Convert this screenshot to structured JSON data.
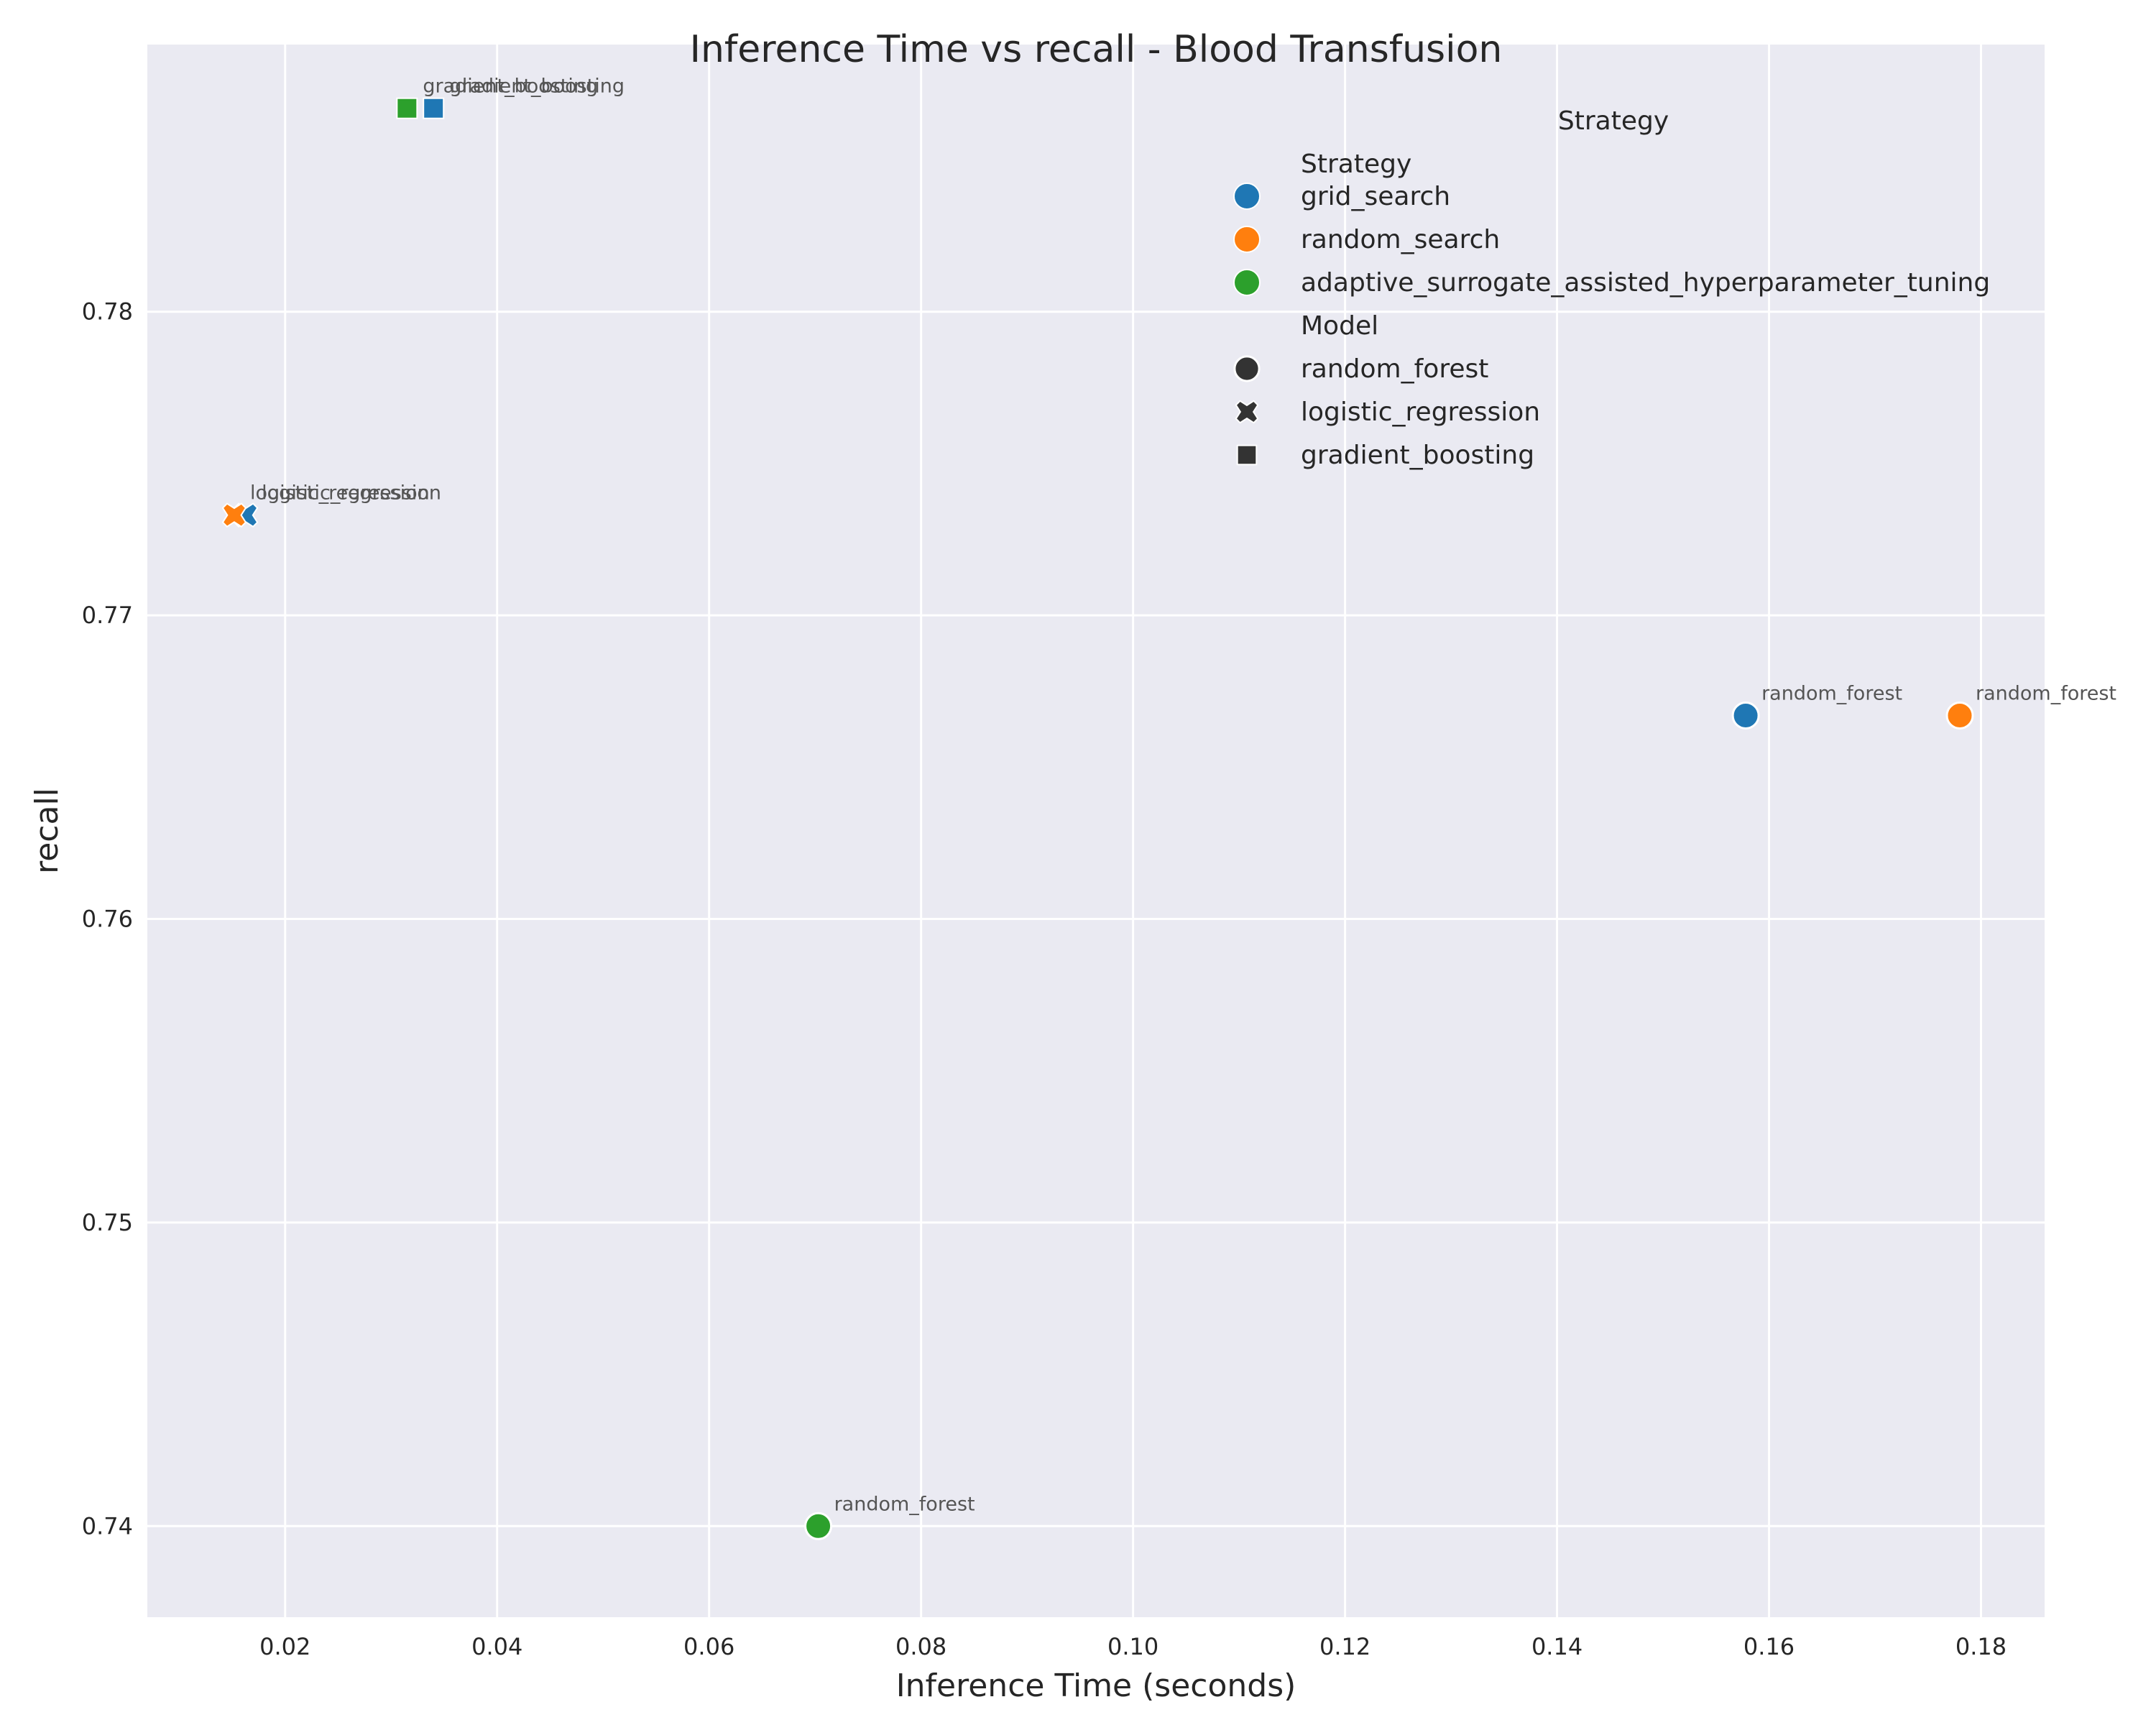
{
  "chart_data": {
    "type": "scatter",
    "title": "Inference Time vs recall - Blood Transfusion",
    "xlabel": "Inference Time (seconds)",
    "ylabel": "recall",
    "xlim": [
      0.007,
      0.186
    ],
    "ylim": [
      0.737,
      0.7888
    ],
    "xticks": [
      "0.02",
      "0.04",
      "0.06",
      "0.08",
      "0.10",
      "0.12",
      "0.14",
      "0.16",
      "0.18"
    ],
    "xtick_values": [
      0.02,
      0.04,
      0.06,
      0.08,
      0.1,
      0.12,
      0.14,
      0.16,
      0.18
    ],
    "yticks": [
      "0.74",
      "0.75",
      "0.76",
      "0.77",
      "0.78"
    ],
    "ytick_values": [
      0.74,
      0.75,
      0.76,
      0.77,
      0.78
    ],
    "grid": true,
    "legend_placement": "top-right",
    "strategy_colors": {
      "grid_search": "#1f77b4",
      "random_search": "#ff7f0e",
      "adaptive_surrogate_assisted_hyperparameter_tuning": "#2ca02c"
    },
    "points": [
      {
        "strategy": "grid_search",
        "model": "random_forest",
        "x": 0.1578,
        "y": 0.7667,
        "label": "random_forest"
      },
      {
        "strategy": "random_search",
        "model": "random_forest",
        "x": 0.178,
        "y": 0.7667,
        "label": "random_forest"
      },
      {
        "strategy": "adaptive_surrogate_assisted_hyperparameter_tuning",
        "model": "random_forest",
        "x": 0.0703,
        "y": 0.74,
        "label": "random_forest"
      },
      {
        "strategy": "grid_search",
        "model": "logistic_regression",
        "x": 0.0163,
        "y": 0.7733,
        "label": "logistic_regression"
      },
      {
        "strategy": "random_search",
        "model": "logistic_regression",
        "x": 0.0152,
        "y": 0.7733,
        "label": "logistic_regression"
      },
      {
        "strategy": "adaptive_surrogate_assisted_hyperparameter_tuning",
        "model": "gradient_boosting",
        "x": 0.0315,
        "y": 0.7867,
        "label": "gradient_boosting"
      },
      {
        "strategy": "grid_search",
        "model": "gradient_boosting",
        "x": 0.034,
        "y": 0.7867,
        "label": "gradient_boosting"
      }
    ]
  },
  "legend": {
    "title": "Strategy",
    "strategy_header": "Strategy",
    "strategies": [
      {
        "label": "grid_search",
        "color": "#1f77b4"
      },
      {
        "label": "random_search",
        "color": "#ff7f0e"
      },
      {
        "label": "adaptive_surrogate_assisted_hyperparameter_tuning",
        "color": "#2ca02c"
      }
    ],
    "model_header": "Model",
    "models": [
      {
        "label": "random_forest",
        "marker": "circle"
      },
      {
        "label": "logistic_regression",
        "marker": "x"
      },
      {
        "label": "gradient_boosting",
        "marker": "square"
      }
    ]
  }
}
